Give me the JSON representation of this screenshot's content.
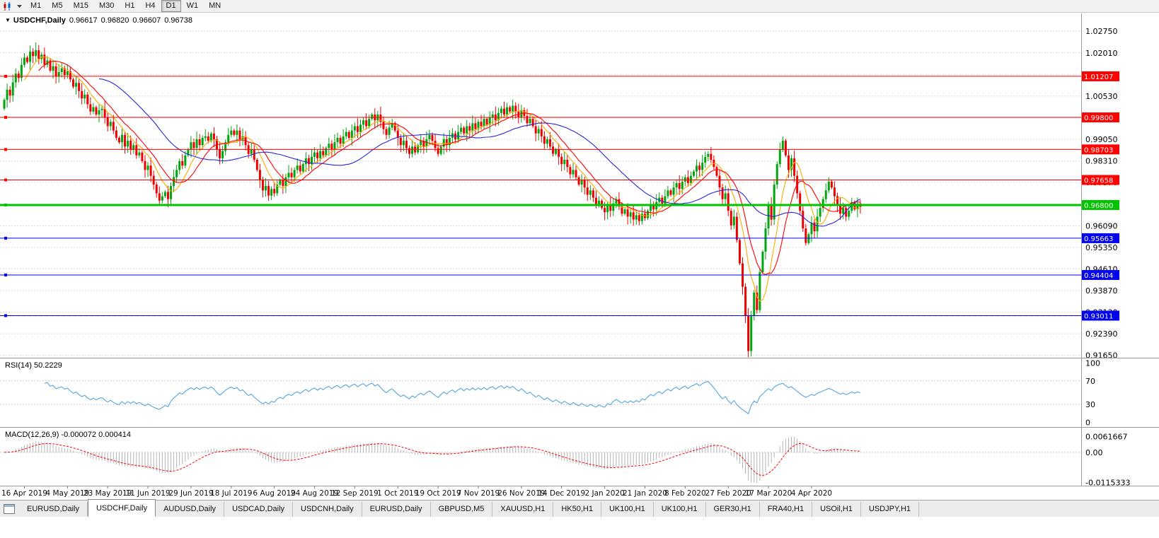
{
  "toolbar": {
    "timeframes": [
      {
        "label": "M1",
        "active": false
      },
      {
        "label": "M5",
        "active": false
      },
      {
        "label": "M15",
        "active": false
      },
      {
        "label": "M30",
        "active": false
      },
      {
        "label": "H1",
        "active": false
      },
      {
        "label": "H4",
        "active": false
      },
      {
        "label": "D1",
        "active": true
      },
      {
        "label": "W1",
        "active": false
      },
      {
        "label": "MN",
        "active": false
      }
    ]
  },
  "chart": {
    "title": {
      "symbol_period": "USDCHF,Daily",
      "open": "0.96617",
      "high": "0.96820",
      "low": "0.96607",
      "close": "0.96738"
    },
    "price_axis": {
      "ticks": [
        "1.02750",
        "1.02010",
        "1.01270",
        "1.00530",
        "0.99790",
        "0.99050",
        "0.98310",
        "0.97570",
        "0.96830",
        "0.96090",
        "0.95350",
        "0.94610",
        "0.93870",
        "0.93130",
        "0.92390",
        "0.91650"
      ]
    },
    "levels": [
      {
        "label": "1.01207",
        "value": 1.01207,
        "color": "#ff0000",
        "width": 1,
        "type": "resistance"
      },
      {
        "label": "0.99800",
        "value": 0.998,
        "color": "#ff0000",
        "width": 1,
        "type": "resistance"
      },
      {
        "label": "0.98703",
        "value": 0.98703,
        "color": "#ff0000",
        "width": 1,
        "type": "resistance"
      },
      {
        "label": "0.97658",
        "value": 0.97658,
        "color": "#ff0000",
        "width": 1,
        "type": "resistance"
      },
      {
        "label": "0.96800",
        "value": 0.968,
        "color": "#00c400",
        "width": 3,
        "type": "current"
      },
      {
        "label": "0.95663",
        "value": 0.95663,
        "color": "#0000ee",
        "width": 1,
        "type": "support"
      },
      {
        "label": "0.94404",
        "value": 0.94404,
        "color": "#0000ee",
        "width": 1,
        "type": "support"
      },
      {
        "label": "0.93011",
        "value": 0.93011,
        "color": "#0000ee",
        "width": 1,
        "type": "support"
      }
    ],
    "date_axis": {
      "labels": [
        "16 Apr 2019",
        "4 May 2019",
        "23 May 2019",
        "11 Jun 2019",
        "29 Jun 2019",
        "18 Jul 2019",
        "6 Aug 2019",
        "24 Aug 2019",
        "12 Sep 2019",
        "1 Oct 2019",
        "19 Oct 2019",
        "7 Nov 2019",
        "26 Nov 2019",
        "14 Dec 2019",
        "2 Jan 2020",
        "21 Jan 2020",
        "8 Feb 2020",
        "27 Feb 2020",
        "17 Mar 2020",
        "4 Apr 2020"
      ],
      "indices": [
        7,
        22,
        36,
        50,
        65,
        79,
        94,
        108,
        122,
        137,
        151,
        165,
        180,
        194,
        209,
        223,
        237,
        252,
        266,
        281
      ]
    }
  },
  "chart_data": {
    "type": "candlestick",
    "symbol": "USDCHF",
    "period": "Daily",
    "y_range": {
      "top": 1.0336,
      "bottom": 0.9157
    },
    "colors": {
      "bull": "#00a510",
      "bear": "#ee0000"
    },
    "moving_averages": [
      {
        "period": 8,
        "color": "#ffaa00"
      },
      {
        "period": 13,
        "color": "#ff0000"
      },
      {
        "period": 34,
        "color": "#2828d7"
      }
    ],
    "closes": [
      1.004,
      1.0075,
      1.0055,
      1.01,
      1.013,
      1.0115,
      1.016,
      1.0185,
      1.017,
      1.0205,
      1.019,
      1.021,
      1.018,
      1.0195,
      1.016,
      1.0175,
      1.014,
      1.0155,
      1.012,
      1.0135,
      1.0148,
      1.0125,
      1.0138,
      1.011,
      1.0085,
      1.0098,
      1.007,
      1.0045,
      1.0058,
      1.0025,
      1.0,
      1.0015,
      0.999,
      1.0005,
      1.001,
      0.998,
      0.995,
      0.9965,
      0.9935,
      0.991,
      0.9895,
      0.992,
      0.988,
      0.99,
      0.987,
      0.9885,
      0.985,
      0.986,
      0.983,
      0.98,
      0.9815,
      0.978,
      0.975,
      0.972,
      0.9695,
      0.971,
      0.9725,
      0.97,
      0.9745,
      0.9775,
      0.98,
      0.983,
      0.9815,
      0.985,
      0.987,
      0.9895,
      0.9875,
      0.9905,
      0.9885,
      0.991,
      0.9915,
      0.99,
      0.9925,
      0.9905,
      0.987,
      0.984,
      0.9865,
      0.9895,
      0.992,
      0.9935,
      0.992,
      0.9935,
      0.9905,
      0.9915,
      0.9885,
      0.9855,
      0.987,
      0.9835,
      0.98,
      0.9765,
      0.973,
      0.9745,
      0.9712,
      0.9735,
      0.972,
      0.975,
      0.9765,
      0.9745,
      0.9775,
      0.979,
      0.9775,
      0.98,
      0.9815,
      0.9795,
      0.982,
      0.984,
      0.982,
      0.9845,
      0.986,
      0.984,
      0.9865,
      0.985,
      0.9875,
      0.989,
      0.987,
      0.9895,
      0.991,
      0.989,
      0.9915,
      0.993,
      0.991,
      0.9935,
      0.995,
      0.993,
      0.9955,
      0.997,
      0.995,
      0.9975,
      0.999,
      0.997,
      0.999,
      0.9965,
      0.994,
      0.992,
      0.9945,
      0.996,
      0.9935,
      0.991,
      0.9885,
      0.99,
      0.9875,
      0.9855,
      0.988,
      0.986,
      0.9885,
      0.99,
      0.988,
      0.9905,
      0.992,
      0.99,
      0.9875,
      0.9855,
      0.988,
      0.9905,
      0.9885,
      0.991,
      0.9925,
      0.9905,
      0.993,
      0.9945,
      0.9925,
      0.995,
      0.9935,
      0.996,
      0.994,
      0.9965,
      0.995,
      0.9975,
      0.9955,
      0.998,
      0.999,
      0.997,
      0.9995,
      1.001,
      0.999,
      1.0015,
      1.0,
      1.002,
      1.0,
      0.998,
      1.0005,
      0.9985,
      0.996,
      0.9975,
      0.995,
      0.9925,
      0.994,
      0.9915,
      0.989,
      0.9905,
      0.988,
      0.9855,
      0.987,
      0.9845,
      0.982,
      0.9835,
      0.981,
      0.9785,
      0.98,
      0.9775,
      0.975,
      0.9765,
      0.974,
      0.9715,
      0.973,
      0.9705,
      0.968,
      0.9695,
      0.967,
      0.9655,
      0.968,
      0.966,
      0.9685,
      0.97,
      0.9675,
      0.965,
      0.9665,
      0.964,
      0.9655,
      0.963,
      0.9645,
      0.9625,
      0.965,
      0.9635,
      0.966,
      0.968,
      0.9665,
      0.969,
      0.9705,
      0.9685,
      0.971,
      0.973,
      0.9715,
      0.974,
      0.9755,
      0.9735,
      0.976,
      0.9775,
      0.9755,
      0.978,
      0.9795,
      0.9815,
      0.98,
      0.9825,
      0.9845,
      0.9855,
      0.9835,
      0.981,
      0.978,
      0.974,
      0.97,
      0.972,
      0.966,
      0.961,
      0.964,
      0.956,
      0.948,
      0.94,
      0.93,
      0.918,
      0.93,
      0.938,
      0.932,
      0.945,
      0.952,
      0.96,
      0.968,
      0.963,
      0.975,
      0.982,
      0.987,
      0.99,
      0.985,
      0.98,
      0.984,
      0.978,
      0.972,
      0.966,
      0.96,
      0.955,
      0.958,
      0.962,
      0.959,
      0.964,
      0.967,
      0.97,
      0.973,
      0.976,
      0.974,
      0.971,
      0.968,
      0.965,
      0.967,
      0.964,
      0.966,
      0.969,
      0.9665,
      0.9685,
      0.9674
    ]
  },
  "indicators": {
    "rsi": {
      "title": "RSI(14) 50.2229",
      "period": 14,
      "value": "50.2229",
      "color": "#55a5e0",
      "axis_labels": [
        "100",
        "70",
        "30",
        "0"
      ],
      "dashed_levels": [
        70,
        30
      ]
    },
    "macd": {
      "title": "MACD(12,26,9) -0.000072 0.000414",
      "values": "-0.000072 0.000414",
      "histogram_color": "#b4b4b4",
      "signal_color": "#ff0000",
      "axis_labels": [
        "0.0061667",
        "0.00",
        "-0.0115333"
      ]
    }
  },
  "tabs": {
    "items": [
      {
        "label": "EURUSD,Daily",
        "active": false
      },
      {
        "label": "USDCHF,Daily",
        "active": true
      },
      {
        "label": "AUDUSD,Daily",
        "active": false
      },
      {
        "label": "USDCAD,Daily",
        "active": false
      },
      {
        "label": "USDCNH,Daily",
        "active": false
      },
      {
        "label": "EURUSD,Daily",
        "active": false
      },
      {
        "label": "GBPUSD,M5",
        "active": false
      },
      {
        "label": "XAUUSD,H1",
        "active": false
      },
      {
        "label": "HK50,H1",
        "active": false
      },
      {
        "label": "UK100,H1",
        "active": false
      },
      {
        "label": "UK100,H1",
        "active": false
      },
      {
        "label": "GER30,H1",
        "active": false
      },
      {
        "label": "FRA40,H1",
        "active": false
      },
      {
        "label": "USOil,H1",
        "active": false
      },
      {
        "label": "USDJPY,H1",
        "active": false
      }
    ]
  }
}
